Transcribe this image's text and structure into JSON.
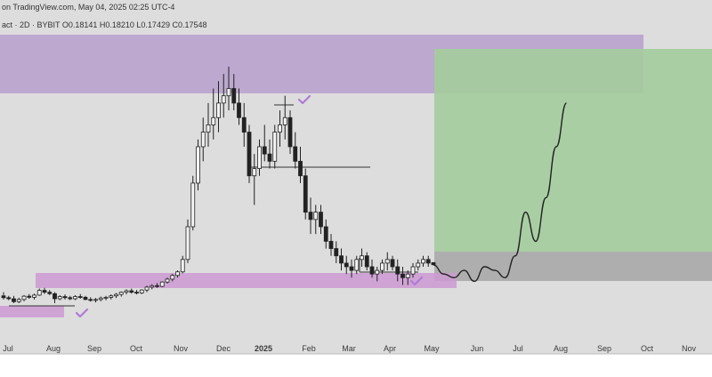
{
  "header": {
    "line1": "on TradingView.com, May 04, 2025 02:25 UTC-4",
    "line2": "act · 2D · BYBIT   O0.18141   H0.18210   L0.17429   C0.17548"
  },
  "colors": {
    "background": "#dddddd",
    "resistance_zone": "#b79fcc",
    "support_zone": "#cc9ad2",
    "target_zone": "#a3cc9c",
    "stop_zone": "#a8a8a8",
    "candles": "#222222",
    "checkmark": "#b07ad6",
    "projection": "#222222"
  },
  "chart_data": {
    "type": "candlestick",
    "symbol": "act",
    "exchange": "BYBIT",
    "interval": "2D",
    "last_bar": {
      "open": 0.18141,
      "high": 0.1821,
      "low": 0.17429,
      "close": 0.17548
    },
    "x_tick_labels": [
      "Jul",
      "Aug",
      "Sep",
      "Oct",
      "Nov",
      "Dec",
      "2025",
      "Feb",
      "Mar",
      "Apr",
      "May",
      "Jun",
      "Jul",
      "Aug",
      "Sep",
      "Oct",
      "Nov"
    ],
    "bars_approx": [
      [
        0,
        0.09,
        0.1,
        0.08,
        0.085
      ],
      [
        1,
        0.085,
        0.09,
        0.078,
        0.082
      ],
      [
        2,
        0.082,
        0.09,
        0.07,
        0.074
      ],
      [
        3,
        0.074,
        0.085,
        0.07,
        0.08
      ],
      [
        4,
        0.08,
        0.092,
        0.075,
        0.089
      ],
      [
        5,
        0.089,
        0.095,
        0.082,
        0.086
      ],
      [
        6,
        0.086,
        0.096,
        0.08,
        0.092
      ],
      [
        7,
        0.092,
        0.11,
        0.09,
        0.105
      ],
      [
        8,
        0.105,
        0.112,
        0.095,
        0.1
      ],
      [
        9,
        0.1,
        0.106,
        0.092,
        0.096
      ],
      [
        10,
        0.096,
        0.1,
        0.07,
        0.082
      ],
      [
        11,
        0.082,
        0.092,
        0.078,
        0.088
      ],
      [
        12,
        0.088,
        0.094,
        0.08,
        0.085
      ],
      [
        13,
        0.085,
        0.09,
        0.078,
        0.082
      ],
      [
        14,
        0.082,
        0.092,
        0.078,
        0.088
      ],
      [
        15,
        0.088,
        0.095,
        0.082,
        0.086
      ],
      [
        16,
        0.086,
        0.09,
        0.078,
        0.08
      ],
      [
        17,
        0.08,
        0.086,
        0.074,
        0.078
      ],
      [
        18,
        0.078,
        0.084,
        0.072,
        0.08
      ],
      [
        19,
        0.08,
        0.088,
        0.075,
        0.084
      ],
      [
        20,
        0.084,
        0.09,
        0.078,
        0.086
      ],
      [
        21,
        0.086,
        0.094,
        0.08,
        0.09
      ],
      [
        22,
        0.09,
        0.098,
        0.084,
        0.094
      ],
      [
        23,
        0.094,
        0.102,
        0.088,
        0.1
      ],
      [
        24,
        0.1,
        0.108,
        0.094,
        0.104
      ],
      [
        25,
        0.104,
        0.11,
        0.096,
        0.1
      ],
      [
        26,
        0.1,
        0.106,
        0.094,
        0.098
      ],
      [
        27,
        0.098,
        0.108,
        0.095,
        0.106
      ],
      [
        28,
        0.106,
        0.118,
        0.1,
        0.114
      ],
      [
        29,
        0.114,
        0.122,
        0.108,
        0.118
      ],
      [
        30,
        0.118,
        0.125,
        0.112,
        0.116
      ],
      [
        31,
        0.116,
        0.13,
        0.114,
        0.128
      ],
      [
        32,
        0.128,
        0.14,
        0.124,
        0.136
      ],
      [
        33,
        0.136,
        0.15,
        0.13,
        0.146
      ],
      [
        34,
        0.146,
        0.16,
        0.14,
        0.156
      ],
      [
        35,
        0.156,
        0.2,
        0.152,
        0.19
      ],
      [
        36,
        0.19,
        0.3,
        0.18,
        0.28
      ],
      [
        37,
        0.28,
        0.42,
        0.27,
        0.4
      ],
      [
        38,
        0.4,
        0.52,
        0.38,
        0.5
      ],
      [
        39,
        0.5,
        0.58,
        0.46,
        0.54
      ],
      [
        40,
        0.54,
        0.62,
        0.5,
        0.56
      ],
      [
        41,
        0.56,
        0.66,
        0.52,
        0.58
      ],
      [
        42,
        0.58,
        0.68,
        0.54,
        0.62
      ],
      [
        43,
        0.62,
        0.7,
        0.58,
        0.64
      ],
      [
        44,
        0.64,
        0.72,
        0.6,
        0.66
      ],
      [
        45,
        0.66,
        0.7,
        0.6,
        0.62
      ],
      [
        46,
        0.62,
        0.66,
        0.56,
        0.58
      ],
      [
        47,
        0.58,
        0.62,
        0.5,
        0.54
      ],
      [
        48,
        0.54,
        0.56,
        0.4,
        0.42
      ],
      [
        49,
        0.42,
        0.48,
        0.34,
        0.44
      ],
      [
        50,
        0.44,
        0.52,
        0.42,
        0.5
      ],
      [
        51,
        0.5,
        0.56,
        0.46,
        0.48
      ],
      [
        52,
        0.48,
        0.52,
        0.44,
        0.46
      ],
      [
        53,
        0.46,
        0.56,
        0.44,
        0.54
      ],
      [
        54,
        0.54,
        0.6,
        0.5,
        0.56
      ],
      [
        55,
        0.56,
        0.64,
        0.52,
        0.58
      ],
      [
        56,
        0.58,
        0.6,
        0.48,
        0.5
      ],
      [
        57,
        0.5,
        0.54,
        0.44,
        0.46
      ],
      [
        58,
        0.46,
        0.5,
        0.4,
        0.42
      ],
      [
        59,
        0.42,
        0.44,
        0.3,
        0.32
      ],
      [
        60,
        0.32,
        0.36,
        0.26,
        0.3
      ],
      [
        61,
        0.3,
        0.34,
        0.26,
        0.32
      ],
      [
        62,
        0.32,
        0.34,
        0.26,
        0.28
      ],
      [
        63,
        0.28,
        0.3,
        0.22,
        0.24
      ],
      [
        64,
        0.24,
        0.26,
        0.2,
        0.22
      ],
      [
        65,
        0.22,
        0.24,
        0.18,
        0.2
      ],
      [
        66,
        0.2,
        0.22,
        0.16,
        0.18
      ],
      [
        67,
        0.18,
        0.2,
        0.15,
        0.17
      ],
      [
        68,
        0.17,
        0.19,
        0.14,
        0.16
      ],
      [
        69,
        0.16,
        0.2,
        0.15,
        0.19
      ],
      [
        70,
        0.19,
        0.22,
        0.17,
        0.2
      ],
      [
        71,
        0.2,
        0.21,
        0.16,
        0.17
      ],
      [
        72,
        0.17,
        0.19,
        0.14,
        0.15
      ],
      [
        73,
        0.15,
        0.17,
        0.13,
        0.16
      ],
      [
        74,
        0.16,
        0.19,
        0.15,
        0.18
      ],
      [
        75,
        0.18,
        0.21,
        0.16,
        0.19
      ],
      [
        76,
        0.19,
        0.2,
        0.16,
        0.17
      ],
      [
        77,
        0.17,
        0.19,
        0.13,
        0.15
      ],
      [
        78,
        0.15,
        0.17,
        0.12,
        0.14
      ],
      [
        79,
        0.14,
        0.16,
        0.12,
        0.15
      ],
      [
        80,
        0.15,
        0.18,
        0.14,
        0.17
      ],
      [
        81,
        0.17,
        0.19,
        0.16,
        0.18
      ],
      [
        82,
        0.18,
        0.2,
        0.17,
        0.19
      ],
      [
        83,
        0.19,
        0.2,
        0.17,
        0.18
      ],
      [
        84,
        0.18141,
        0.1821,
        0.17429,
        0.17548
      ]
    ],
    "projection_path_approx": [
      [
        84,
        0.175
      ],
      [
        86,
        0.15
      ],
      [
        88,
        0.14
      ],
      [
        90,
        0.16
      ],
      [
        92,
        0.13
      ],
      [
        94,
        0.17
      ],
      [
        96,
        0.16
      ],
      [
        98,
        0.14
      ],
      [
        100,
        0.2
      ],
      [
        102,
        0.32
      ],
      [
        104,
        0.24
      ],
      [
        106,
        0.36
      ],
      [
        108,
        0.5
      ],
      [
        110,
        0.62
      ]
    ]
  }
}
